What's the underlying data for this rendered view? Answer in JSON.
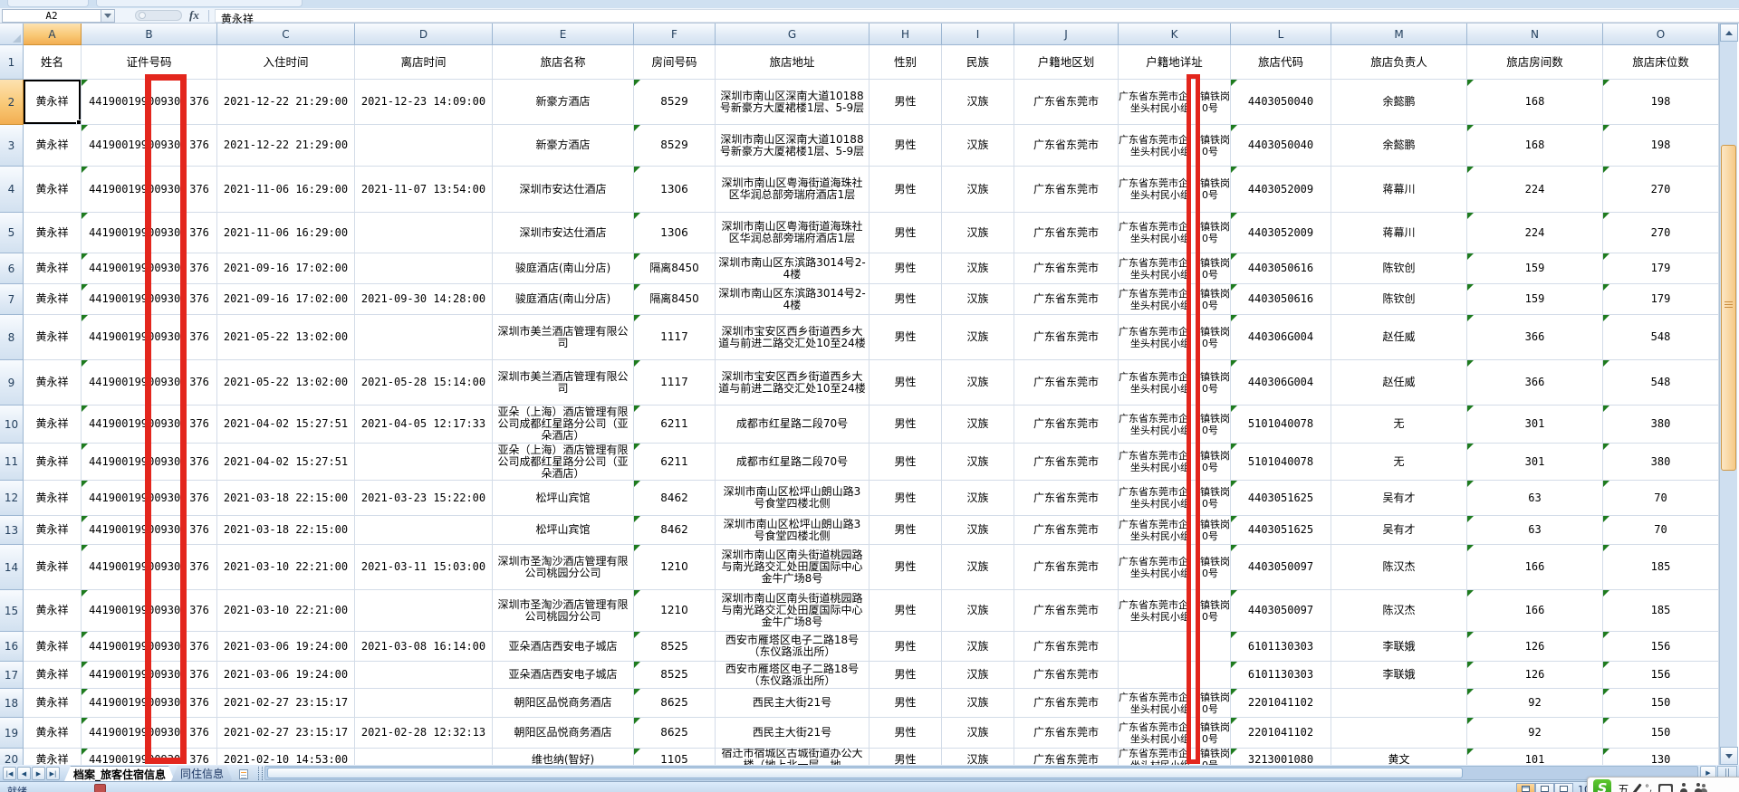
{
  "chrome": {
    "name_box": "A2",
    "fx_label": "fx",
    "formula_value": "黄永祥",
    "tabs": {
      "sheets": [
        {
          "label": "档案_旅客住宿信息",
          "active": true
        },
        {
          "label": "同住信息",
          "active": false
        }
      ]
    },
    "status": {
      "ready": "就绪",
      "zoom_partial": "10"
    },
    "ime": {
      "wubi": "五"
    },
    "red_annotation_color": "#e3261d"
  },
  "table": {
    "selected_cell": "A2",
    "columns": [
      {
        "letter": "A",
        "label": "姓名"
      },
      {
        "letter": "B",
        "label": "证件号码"
      },
      {
        "letter": "C",
        "label": "入住时间"
      },
      {
        "letter": "D",
        "label": "离店时间"
      },
      {
        "letter": "E",
        "label": "旅店名称"
      },
      {
        "letter": "F",
        "label": "房间号码"
      },
      {
        "letter": "G",
        "label": "旅店地址"
      },
      {
        "letter": "H",
        "label": "性别"
      },
      {
        "letter": "I",
        "label": "民族"
      },
      {
        "letter": "J",
        "label": "户籍地区划"
      },
      {
        "letter": "K",
        "label": "户籍地详址"
      },
      {
        "letter": "L",
        "label": "旅店代码"
      },
      {
        "letter": "M",
        "label": "旅店负责人"
      },
      {
        "letter": "N",
        "label": "旅店房间数"
      },
      {
        "letter": "O",
        "label": "旅店床位数"
      }
    ],
    "rows": [
      {
        "n": 2,
        "name": "黄永祥",
        "id": [
          "44190019900930",
          "376"
        ],
        "checkin": "2021-12-22 21:29:00",
        "checkout": "2021-12-23 14:09:00",
        "hotel": "新豪方酒店",
        "room": "8529",
        "hotel_addr": "深圳市南山区深南大道10188号新豪方大厦裙楼1层、5-9层",
        "gender": "男性",
        "ethnicity": "汉族",
        "region": "广东省东莞市",
        "household": [
          [
            "广东省东莞市企",
            "镇铁岗"
          ],
          [
            "坐头村民小组",
            "0号"
          ]
        ],
        "code": "4403050040",
        "manager": "余懿鹏",
        "rooms": "168",
        "beds": "198"
      },
      {
        "n": 3,
        "name": "黄永祥",
        "id": [
          "44190019900930",
          "376"
        ],
        "checkin": "2021-12-22 21:29:00",
        "checkout": "",
        "hotel": "新豪方酒店",
        "room": "8529",
        "hotel_addr": "深圳市南山区深南大道10188号新豪方大厦裙楼1层、5-9层",
        "gender": "男性",
        "ethnicity": "汉族",
        "region": "广东省东莞市",
        "household": [
          [
            "广东省东莞市企",
            "镇铁岗"
          ],
          [
            "坐头村民小组",
            "0号"
          ]
        ],
        "code": "4403050040",
        "manager": "余懿鹏",
        "rooms": "168",
        "beds": "198"
      },
      {
        "n": 4,
        "name": "黄永祥",
        "id": [
          "44190019900930",
          "376"
        ],
        "checkin": "2021-11-06 16:29:00",
        "checkout": "2021-11-07 13:54:00",
        "hotel": "深圳市安达仕酒店",
        "room": "1306",
        "hotel_addr": "深圳市南山区粤海街道海珠社区华润总部旁瑞府酒店1层",
        "gender": "男性",
        "ethnicity": "汉族",
        "region": "广东省东莞市",
        "household": [
          [
            "广东省东莞市企",
            "镇铁岗"
          ],
          [
            "坐头村民小组",
            "0号"
          ]
        ],
        "code": "4403052009",
        "manager": "蒋幕川",
        "rooms": "224",
        "beds": "270"
      },
      {
        "n": 5,
        "name": "黄永祥",
        "id": [
          "44190019900930",
          "376"
        ],
        "checkin": "2021-11-06 16:29:00",
        "checkout": "",
        "hotel": "深圳市安达仕酒店",
        "room": "1306",
        "hotel_addr": "深圳市南山区粤海街道海珠社区华润总部旁瑞府酒店1层",
        "gender": "男性",
        "ethnicity": "汉族",
        "region": "广东省东莞市",
        "household": [
          [
            "广东省东莞市企",
            "镇铁岗"
          ],
          [
            "坐头村民小组",
            "0号"
          ]
        ],
        "code": "4403052009",
        "manager": "蒋幕川",
        "rooms": "224",
        "beds": "270"
      },
      {
        "n": 6,
        "name": "黄永祥",
        "id": [
          "44190019900930",
          "376"
        ],
        "checkin": "2021-09-16 17:02:00",
        "checkout": "",
        "hotel": "骏庭酒店(南山分店)",
        "room": "隔离8450",
        "hotel_addr": "深圳市南山区东滨路3014号2-4楼",
        "gender": "男性",
        "ethnicity": "汉族",
        "region": "广东省东莞市",
        "household": [
          [
            "广东省东莞市企",
            "镇铁岗"
          ],
          [
            "坐头村民小组",
            "0号"
          ]
        ],
        "code": "4403050616",
        "manager": "陈钦创",
        "rooms": "159",
        "beds": "179"
      },
      {
        "n": 7,
        "name": "黄永祥",
        "id": [
          "44190019900930",
          "376"
        ],
        "checkin": "2021-09-16 17:02:00",
        "checkout": "2021-09-30 14:28:00",
        "hotel": "骏庭酒店(南山分店)",
        "room": "隔离8450",
        "hotel_addr": "深圳市南山区东滨路3014号2-4楼",
        "gender": "男性",
        "ethnicity": "汉族",
        "region": "广东省东莞市",
        "household": [
          [
            "广东省东莞市企",
            "镇铁岗"
          ],
          [
            "坐头村民小组",
            "0号"
          ]
        ],
        "code": "4403050616",
        "manager": "陈钦创",
        "rooms": "159",
        "beds": "179"
      },
      {
        "n": 8,
        "name": "黄永祥",
        "id": [
          "44190019900930",
          "376"
        ],
        "checkin": "2021-05-22 13:02:00",
        "checkout": "",
        "hotel": "深圳市美兰酒店管理有限公司",
        "room": "1117",
        "hotel_addr": "深圳市宝安区西乡街道西乡大道与前进二路交汇处10至24楼",
        "gender": "男性",
        "ethnicity": "汉族",
        "region": "广东省东莞市",
        "household": [
          [
            "广东省东莞市企",
            "镇铁岗"
          ],
          [
            "坐头村民小组",
            "0号"
          ]
        ],
        "code": "440306G004",
        "manager": "赵任威",
        "rooms": "366",
        "beds": "548"
      },
      {
        "n": 9,
        "name": "黄永祥",
        "id": [
          "44190019900930",
          "376"
        ],
        "checkin": "2021-05-22 13:02:00",
        "checkout": "2021-05-28 15:14:00",
        "hotel": "深圳市美兰酒店管理有限公司",
        "room": "1117",
        "hotel_addr": "深圳市宝安区西乡街道西乡大道与前进二路交汇处10至24楼",
        "gender": "男性",
        "ethnicity": "汉族",
        "region": "广东省东莞市",
        "household": [
          [
            "广东省东莞市企",
            "镇铁岗"
          ],
          [
            "坐头村民小组",
            "0号"
          ]
        ],
        "code": "440306G004",
        "manager": "赵任威",
        "rooms": "366",
        "beds": "548"
      },
      {
        "n": 10,
        "name": "黄永祥",
        "id": [
          "44190019900930",
          "376"
        ],
        "checkin": "2021-04-02 15:27:51",
        "checkout": "2021-04-05 12:17:33",
        "hotel": "亚朵（上海）酒店管理有限公司成都红星路分公司（亚朵酒店）",
        "room": "6211",
        "hotel_addr": "成都市红星路二段70号",
        "gender": "男性",
        "ethnicity": "汉族",
        "region": "广东省东莞市",
        "household": [
          [
            "广东省东莞市企",
            "镇铁岗"
          ],
          [
            "坐头村民小组",
            "0号"
          ]
        ],
        "code": "5101040078",
        "manager": "无",
        "rooms": "301",
        "beds": "380"
      },
      {
        "n": 11,
        "name": "黄永祥",
        "id": [
          "44190019900930",
          "376"
        ],
        "checkin": "2021-04-02 15:27:51",
        "checkout": "",
        "hotel": "亚朵（上海）酒店管理有限公司成都红星路分公司（亚朵酒店）",
        "room": "6211",
        "hotel_addr": "成都市红星路二段70号",
        "gender": "男性",
        "ethnicity": "汉族",
        "region": "广东省东莞市",
        "household": [
          [
            "广东省东莞市企",
            "镇铁岗"
          ],
          [
            "坐头村民小组",
            "0号"
          ]
        ],
        "code": "5101040078",
        "manager": "无",
        "rooms": "301",
        "beds": "380"
      },
      {
        "n": 12,
        "name": "黄永祥",
        "id": [
          "44190019900930",
          "376"
        ],
        "checkin": "2021-03-18 22:15:00",
        "checkout": "2021-03-23 15:22:00",
        "hotel": "松坪山宾馆",
        "room": "8462",
        "hotel_addr": "深圳市南山区松坪山朗山路3号食堂四楼北侧",
        "gender": "男性",
        "ethnicity": "汉族",
        "region": "广东省东莞市",
        "household": [
          [
            "广东省东莞市企",
            "镇铁岗"
          ],
          [
            "坐头村民小组",
            "0号"
          ]
        ],
        "code": "4403051625",
        "manager": "吴有才",
        "rooms": "63",
        "beds": "70"
      },
      {
        "n": 13,
        "name": "黄永祥",
        "id": [
          "44190019900930",
          "376"
        ],
        "checkin": "2021-03-18 22:15:00",
        "checkout": "",
        "hotel": "松坪山宾馆",
        "room": "8462",
        "hotel_addr": "深圳市南山区松坪山朗山路3号食堂四楼北侧",
        "gender": "男性",
        "ethnicity": "汉族",
        "region": "广东省东莞市",
        "household": [
          [
            "广东省东莞市企",
            "镇铁岗"
          ],
          [
            "坐头村民小组",
            "0号"
          ]
        ],
        "code": "4403051625",
        "manager": "吴有才",
        "rooms": "63",
        "beds": "70"
      },
      {
        "n": 14,
        "name": "黄永祥",
        "id": [
          "44190019900930",
          "376"
        ],
        "checkin": "2021-03-10 22:21:00",
        "checkout": "2021-03-11 15:03:00",
        "hotel": "深圳市圣淘沙酒店管理有限公司桃园分公司",
        "room": "1210",
        "hotel_addr": "深圳市南山区南头街道桃园路与南光路交汇处田厦国际中心金牛广场8号",
        "gender": "男性",
        "ethnicity": "汉族",
        "region": "广东省东莞市",
        "household": [
          [
            "广东省东莞市企",
            "镇铁岗"
          ],
          [
            "坐头村民小组",
            "0号"
          ]
        ],
        "code": "4403050097",
        "manager": "陈汉杰",
        "rooms": "166",
        "beds": "185"
      },
      {
        "n": 15,
        "name": "黄永祥",
        "id": [
          "44190019900930",
          "376"
        ],
        "checkin": "2021-03-10 22:21:00",
        "checkout": "",
        "hotel": "深圳市圣淘沙酒店管理有限公司桃园分公司",
        "room": "1210",
        "hotel_addr": "深圳市南山区南头街道桃园路与南光路交汇处田厦国际中心金牛广场8号",
        "gender": "男性",
        "ethnicity": "汉族",
        "region": "广东省东莞市",
        "household": [
          [
            "广东省东莞市企",
            "镇铁岗"
          ],
          [
            "坐头村民小组",
            "0号"
          ]
        ],
        "code": "4403050097",
        "manager": "陈汉杰",
        "rooms": "166",
        "beds": "185"
      },
      {
        "n": 16,
        "name": "黄永祥",
        "id": [
          "44190019900930",
          "376"
        ],
        "checkin": "2021-03-06 19:24:00",
        "checkout": "2021-03-08 16:14:00",
        "hotel": "亚朵酒店西安电子城店",
        "room": "8525",
        "hotel_addr": "西安市雁塔区电子二路18号（东仪路派出所）",
        "gender": "男性",
        "ethnicity": "汉族",
        "region": "广东省东莞市",
        "household": null,
        "code": "6101130303",
        "manager": "李联娥",
        "rooms": "126",
        "beds": "156"
      },
      {
        "n": 17,
        "name": "黄永祥",
        "id": [
          "44190019900930",
          "376"
        ],
        "checkin": "2021-03-06 19:24:00",
        "checkout": "",
        "hotel": "亚朵酒店西安电子城店",
        "room": "8525",
        "hotel_addr": "西安市雁塔区电子二路18号（东仪路派出所）",
        "gender": "男性",
        "ethnicity": "汉族",
        "region": "广东省东莞市",
        "household": null,
        "code": "6101130303",
        "manager": "李联娥",
        "rooms": "126",
        "beds": "156"
      },
      {
        "n": 18,
        "name": "黄永祥",
        "id": [
          "44190019900930",
          "376"
        ],
        "checkin": "2021-02-27 23:15:17",
        "checkout": "",
        "hotel": "朝阳区品悦商务酒店",
        "room": "8625",
        "hotel_addr": "西民主大街21号",
        "gender": "男性",
        "ethnicity": "汉族",
        "region": "广东省东莞市",
        "household": [
          [
            "广东省东莞市企",
            "镇铁岗"
          ],
          [
            "坐头村民小组",
            "0号"
          ]
        ],
        "code": "2201041102",
        "manager": "",
        "rooms": "92",
        "beds": "150"
      },
      {
        "n": 19,
        "name": "黄永祥",
        "id": [
          "44190019900930",
          "376"
        ],
        "checkin": "2021-02-27 23:15:17",
        "checkout": "2021-02-28 12:32:13",
        "hotel": "朝阳区品悦商务酒店",
        "room": "8625",
        "hotel_addr": "西民主大街21号",
        "gender": "男性",
        "ethnicity": "汉族",
        "region": "广东省东莞市",
        "household": [
          [
            "广东省东莞市企",
            "镇铁岗"
          ],
          [
            "坐头村民小组",
            "0号"
          ]
        ],
        "code": "2201041102",
        "manager": "",
        "rooms": "92",
        "beds": "150"
      },
      {
        "n": 20,
        "name": "黄永祥",
        "id": [
          "44190019900930",
          "376"
        ],
        "checkin": "2021-02-10 14:53:00",
        "checkout": "",
        "hotel": "维也纳(智好)",
        "room": "1105",
        "hotel_addr": "宿迁市宿城区古城街道办公大楼（地上北一层、地",
        "gender": "男性",
        "ethnicity": "汉族",
        "region": "广东省东莞市",
        "household": [
          [
            "广东省东莞市企",
            "镇铁岗"
          ],
          [
            "坐头村民小组",
            "0号"
          ]
        ],
        "code": "3213001080",
        "manager": "黄文",
        "rooms": "101",
        "beds": "130"
      }
    ]
  }
}
